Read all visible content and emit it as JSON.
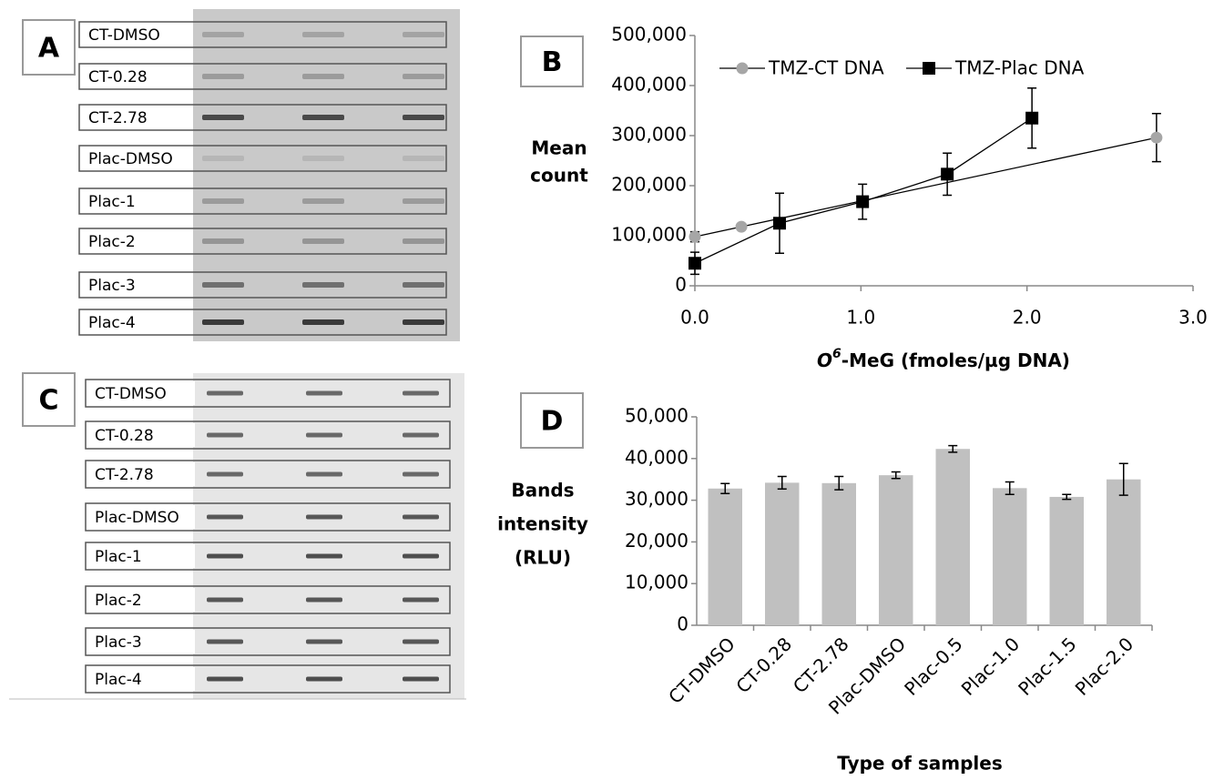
{
  "blots": [
    {
      "panel": "A",
      "rows": [
        "CT-DMSO",
        "CT-0.28",
        "CT-2.78",
        "Plac-DMSO",
        "Plac-1",
        "Plac-2",
        "Plac-3",
        "Plac-4"
      ]
    },
    {
      "panel": "C",
      "rows": [
        "CT-DMSO",
        "CT-0.28",
        "CT-2.78",
        "Plac-DMSO",
        "Plac-1",
        "Plac-2",
        "Plac-3",
        "Plac-4"
      ]
    }
  ],
  "chart_data": [
    {
      "type": "line",
      "panel": "B",
      "ylabel": [
        "Mean",
        "count"
      ],
      "xlabel": {
        "italic": "O",
        "sup": "6",
        "rest": "-MeG (fmoles/µg DNA)"
      },
      "xlim": [
        0,
        3
      ],
      "xticks": [
        {
          "value": 0,
          "label": "0.0"
        },
        {
          "value": 1,
          "label": "1.0"
        },
        {
          "value": 2,
          "label": "2.0"
        },
        {
          "value": 3,
          "label": "3.0"
        }
      ],
      "ylim": [
        0,
        500000
      ],
      "yticks": [
        0,
        {
          "value": 100000,
          "label": "100,000"
        },
        {
          "value": 200000,
          "label": "200,000"
        },
        {
          "value": 300000,
          "label": "300,000"
        },
        {
          "value": 400000,
          "label": "400,000"
        },
        {
          "value": 500000,
          "label": "500,000"
        }
      ],
      "series": [
        {
          "name": "TMZ-CT DNA",
          "color": "#a6a6a6",
          "marker": "circle",
          "x": [
            0,
            0.28,
            2.78
          ],
          "values": [
            98000,
            118000,
            296000
          ],
          "errors": [
            10000,
            5000,
            48000
          ]
        },
        {
          "name": "TMZ-Plac DNA",
          "color": "#000000",
          "marker": "square",
          "x": [
            0,
            0.51,
            1.01,
            1.52,
            2.03
          ],
          "values": [
            45000,
            125000,
            168000,
            223000,
            335000
          ],
          "errors": [
            22000,
            60000,
            35000,
            42000,
            60000
          ]
        }
      ]
    },
    {
      "type": "bar",
      "panel": "D",
      "ylabel": [
        "Bands",
        "intensity",
        "(RLU)"
      ],
      "xlabel": "Type of samples",
      "color": "#c0c0c0",
      "categories": [
        "CT-DMSO",
        "CT-0.28",
        "CT-2.78",
        "Plac-DMSO",
        "Plac-0.5",
        "Plac-1.0",
        "Plac-1.5",
        "Plac-2.0"
      ],
      "values": [
        32800,
        34200,
        34100,
        36000,
        42300,
        32900,
        30800,
        35000
      ],
      "errors": [
        1200,
        1500,
        1600,
        800,
        800,
        1500,
        600,
        3800
      ],
      "ylim": [
        0,
        50000
      ],
      "yticks": [
        0,
        {
          "value": 10000,
          "label": "10,000"
        },
        {
          "value": 20000,
          "label": "20,000"
        },
        {
          "value": 30000,
          "label": "30,000"
        },
        {
          "value": 40000,
          "label": "40,000"
        },
        {
          "value": 50000,
          "label": "50,000"
        }
      ]
    }
  ]
}
